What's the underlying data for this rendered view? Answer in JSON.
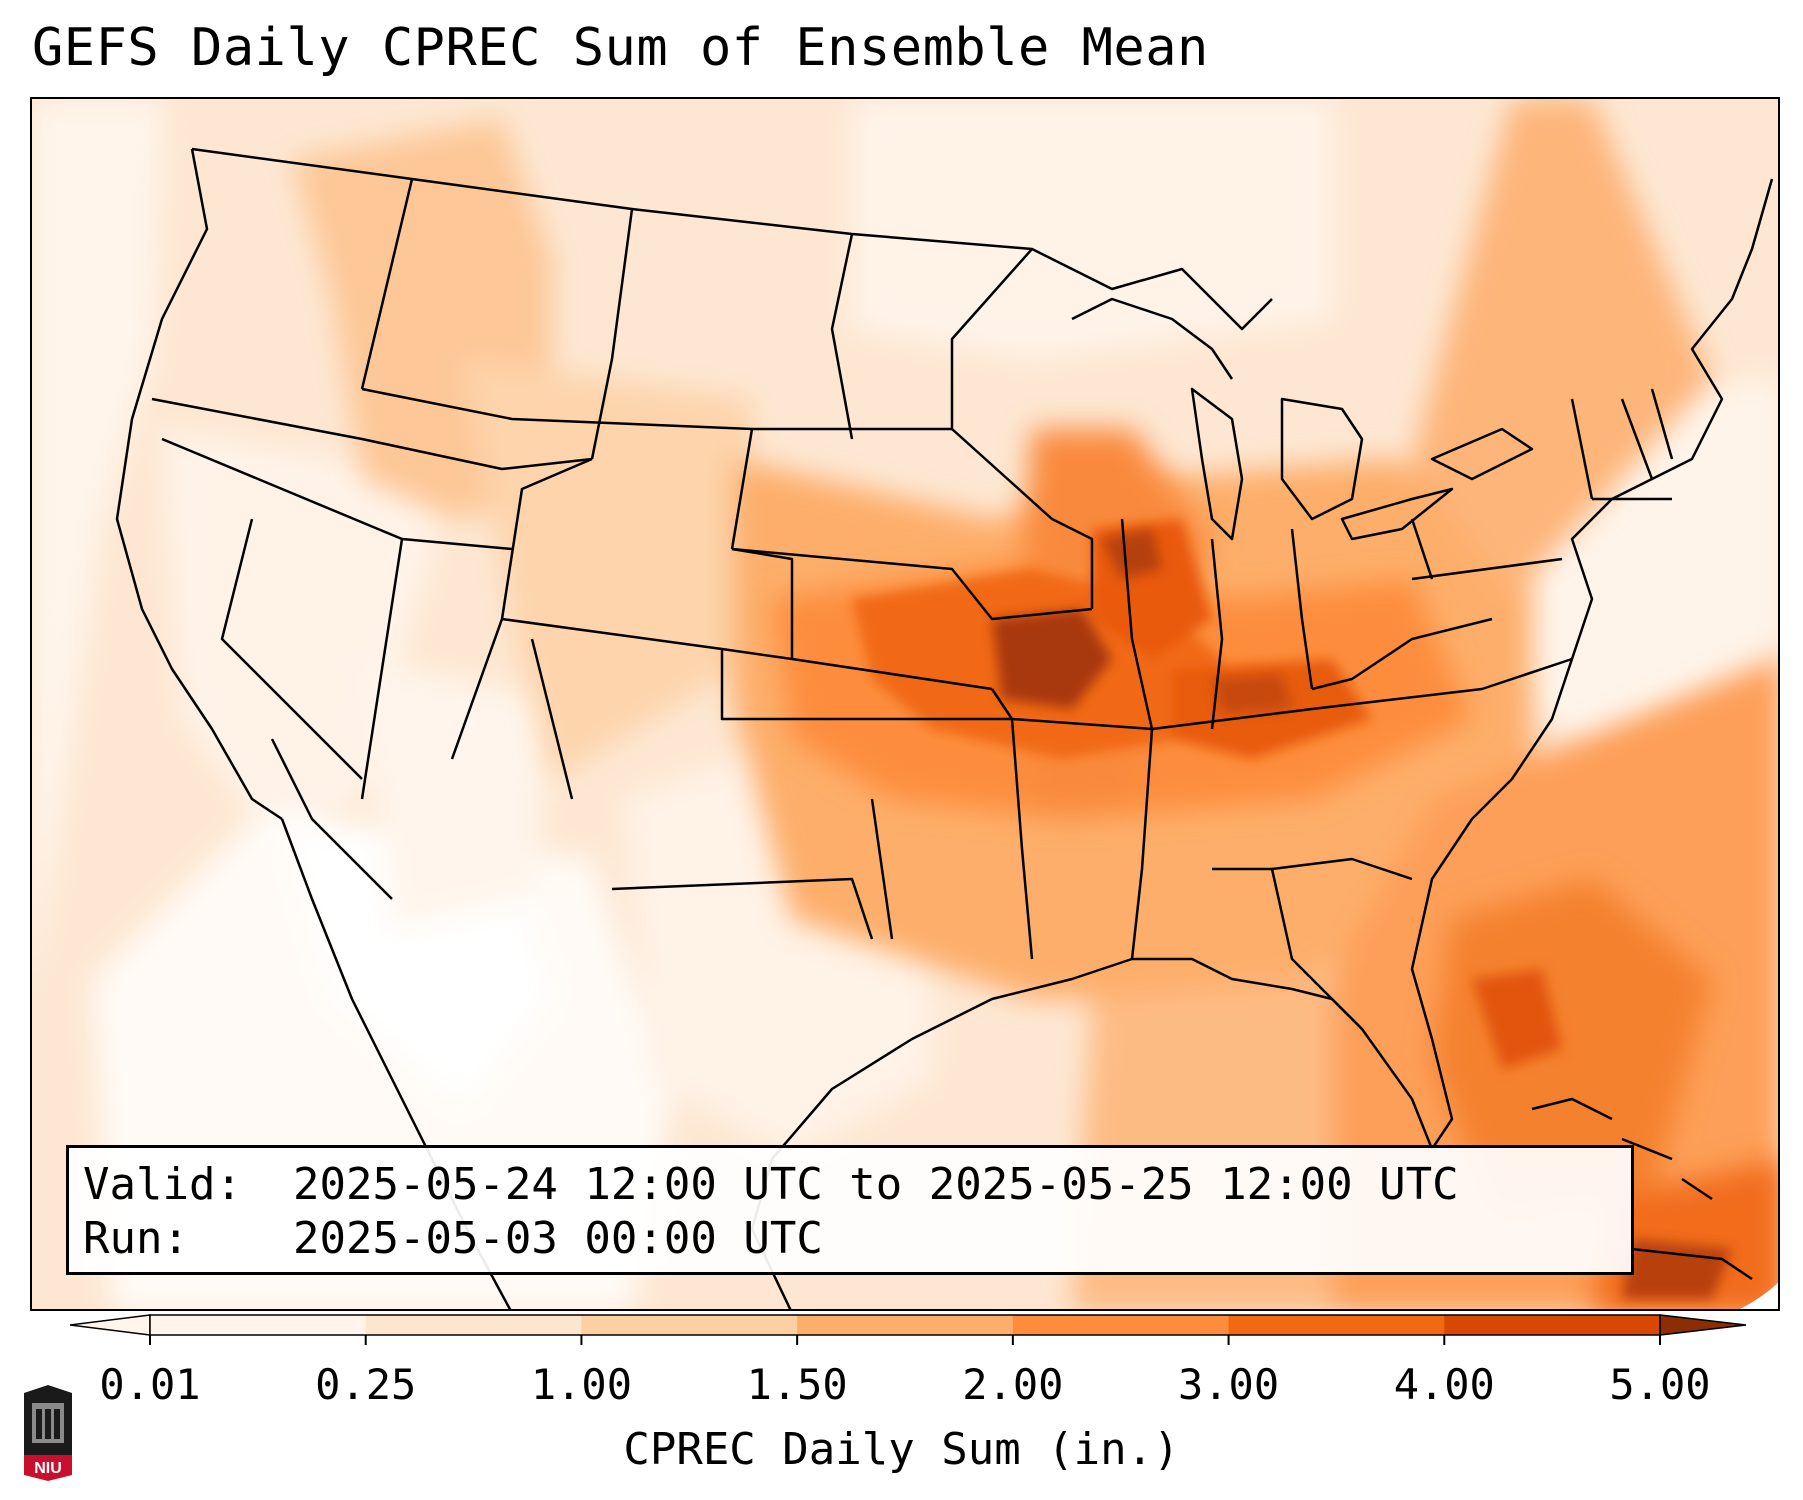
{
  "title": "GEFS Daily CPREC Sum of Ensemble Mean",
  "info": {
    "valid_label": "Valid:",
    "valid_value": "2025-05-24 12:00 UTC to 2025-05-25 12:00 UTC",
    "run_label": "Run:",
    "run_value": "2025-05-03 00:00 UTC"
  },
  "colorbar": {
    "label": "CPREC Daily Sum (in.)",
    "ticks": [
      "0.01",
      "0.25",
      "1.00",
      "1.50",
      "2.00",
      "3.00",
      "4.00",
      "5.00"
    ],
    "colors": [
      "#fff5eb",
      "#fee6ce",
      "#fdd0a2",
      "#fdae6b",
      "#fd8d3c",
      "#f16913",
      "#d94801",
      "#8c2d04"
    ],
    "extend": "both"
  },
  "logo": {
    "text": "NIU",
    "colors": {
      "primary": "#c8102e",
      "secondary": "#000000"
    }
  },
  "colors": {
    "ocean_fill": "#fdeedd",
    "border": "#000000"
  }
}
